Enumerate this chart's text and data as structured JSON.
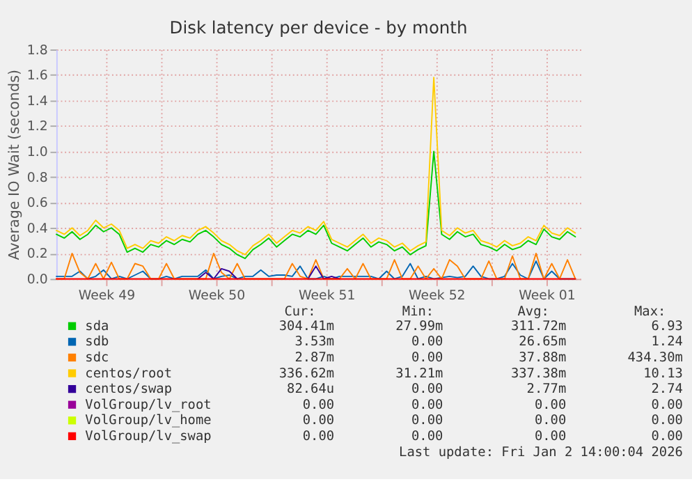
{
  "chart_data": {
    "type": "line",
    "title": "Disk latency per device - by month",
    "ylabel": "Average IO Wait (seconds)",
    "x": [
      "2025-12-01T08:00",
      "2025-12-01T20:00",
      "2025-12-02T08:00",
      "2025-12-02T20:00",
      "2025-12-03T08:00",
      "2025-12-03T20:00",
      "2025-12-04T08:00",
      "2025-12-04T20:00",
      "2025-12-05T08:00",
      "2025-12-05T20:00",
      "2025-12-06T08:00",
      "2025-12-06T20:00",
      "2025-12-07T08:00",
      "2025-12-07T20:00",
      "2025-12-08T08:00",
      "2025-12-08T20:00",
      "2025-12-09T08:00",
      "2025-12-09T20:00",
      "2025-12-10T08:00",
      "2025-12-10T20:00",
      "2025-12-11T08:00",
      "2025-12-11T20:00",
      "2025-12-12T08:00",
      "2025-12-12T20:00",
      "2025-12-13T08:00",
      "2025-12-13T20:00",
      "2025-12-14T08:00",
      "2025-12-14T20:00",
      "2025-12-15T08:00",
      "2025-12-15T20:00",
      "2025-12-16T08:00",
      "2025-12-16T20:00",
      "2025-12-17T08:00",
      "2025-12-17T20:00",
      "2025-12-18T08:00",
      "2025-12-18T20:00",
      "2025-12-19T08:00",
      "2025-12-19T20:00",
      "2025-12-20T08:00",
      "2025-12-20T20:00",
      "2025-12-21T08:00",
      "2025-12-21T20:00",
      "2025-12-22T08:00",
      "2025-12-22T20:00",
      "2025-12-23T08:00",
      "2025-12-23T20:00",
      "2025-12-24T08:00",
      "2025-12-24T20:00",
      "2025-12-25T08:00",
      "2025-12-25T20:00",
      "2025-12-26T08:00",
      "2025-12-26T20:00",
      "2025-12-27T08:00",
      "2025-12-27T20:00",
      "2025-12-28T08:00",
      "2025-12-28T20:00",
      "2025-12-29T08:00",
      "2025-12-29T20:00",
      "2025-12-30T08:00",
      "2025-12-30T20:00",
      "2025-12-31T08:00",
      "2025-12-31T20:00",
      "2026-01-01T08:00",
      "2026-01-01T20:00",
      "2026-01-02T08:00",
      "2026-01-02T20:00",
      "2026-01-03T08:00"
    ],
    "series": [
      {
        "name": "sda",
        "color": "#00cc00",
        "values": [
          0.35,
          0.32,
          0.37,
          0.31,
          0.35,
          0.42,
          0.37,
          0.4,
          0.35,
          0.21,
          0.24,
          0.21,
          0.27,
          0.25,
          0.3,
          0.27,
          0.31,
          0.29,
          0.35,
          0.38,
          0.33,
          0.27,
          0.24,
          0.19,
          0.16,
          0.23,
          0.27,
          0.32,
          0.25,
          0.3,
          0.35,
          0.33,
          0.38,
          0.35,
          0.42,
          0.28,
          0.25,
          0.22,
          0.27,
          0.32,
          0.25,
          0.29,
          0.27,
          0.22,
          0.25,
          0.19,
          0.23,
          0.26,
          1.0,
          0.35,
          0.31,
          0.37,
          0.33,
          0.35,
          0.27,
          0.25,
          0.22,
          0.27,
          0.23,
          0.25,
          0.3,
          0.27,
          0.39,
          0.33,
          0.31,
          0.37,
          0.33
        ]
      },
      {
        "name": "sdb",
        "color": "#0066b3",
        "values": [
          0.02,
          0.02,
          0.02,
          0.06,
          0.0,
          0.02,
          0.07,
          0.0,
          0.02,
          0.0,
          0.03,
          0.06,
          0.0,
          0.0,
          0.02,
          0.0,
          0.02,
          0.02,
          0.02,
          0.07,
          0.0,
          0.02,
          0.03,
          0.0,
          0.02,
          0.02,
          0.07,
          0.02,
          0.03,
          0.03,
          0.02,
          0.1,
          0.0,
          0.0,
          0.02,
          0.0,
          0.02,
          0.02,
          0.02,
          0.02,
          0.02,
          0.0,
          0.06,
          0.0,
          0.02,
          0.12,
          0.0,
          0.02,
          0.0,
          0.01,
          0.02,
          0.01,
          0.02,
          0.1,
          0.02,
          0.0,
          0.0,
          0.02,
          0.12,
          0.03,
          0.0,
          0.14,
          0.0,
          0.06,
          0.0,
          0.0,
          0.0
        ]
      },
      {
        "name": "sdc",
        "color": "#ff8000",
        "values": [
          0.0,
          0.0,
          0.2,
          0.05,
          0.0,
          0.12,
          0.0,
          0.13,
          0.0,
          0.0,
          0.12,
          0.1,
          0.0,
          0.0,
          0.12,
          0.0,
          0.0,
          0.0,
          0.0,
          0.0,
          0.2,
          0.05,
          0.0,
          0.12,
          0.0,
          0.0,
          0.0,
          0.0,
          0.0,
          0.0,
          0.12,
          0.02,
          0.0,
          0.15,
          0.0,
          0.0,
          0.0,
          0.08,
          0.0,
          0.12,
          0.0,
          0.0,
          0.0,
          0.15,
          0.0,
          0.0,
          0.1,
          0.0,
          0.08,
          0.0,
          0.15,
          0.1,
          0.0,
          0.0,
          0.0,
          0.14,
          0.0,
          0.0,
          0.18,
          0.0,
          0.0,
          0.2,
          0.0,
          0.12,
          0.0,
          0.15,
          0.0
        ]
      },
      {
        "name": "centos/root",
        "color": "#ffcc00",
        "values": [
          0.38,
          0.35,
          0.4,
          0.34,
          0.38,
          0.46,
          0.4,
          0.43,
          0.38,
          0.24,
          0.27,
          0.24,
          0.3,
          0.28,
          0.33,
          0.3,
          0.34,
          0.32,
          0.38,
          0.41,
          0.36,
          0.3,
          0.27,
          0.22,
          0.19,
          0.26,
          0.3,
          0.35,
          0.28,
          0.33,
          0.38,
          0.36,
          0.41,
          0.38,
          0.45,
          0.31,
          0.28,
          0.25,
          0.3,
          0.35,
          0.28,
          0.32,
          0.3,
          0.25,
          0.28,
          0.22,
          0.26,
          0.29,
          1.58,
          0.38,
          0.34,
          0.4,
          0.36,
          0.38,
          0.3,
          0.28,
          0.25,
          0.3,
          0.26,
          0.28,
          0.33,
          0.3,
          0.42,
          0.36,
          0.34,
          0.4,
          0.36
        ]
      },
      {
        "name": "centos/swap",
        "color": "#330099",
        "values": [
          null,
          null,
          null,
          null,
          null,
          null,
          null,
          null,
          null,
          null,
          null,
          null,
          null,
          null,
          null,
          null,
          null,
          null,
          0,
          0.05,
          0,
          0.08,
          0.06,
          0,
          null,
          null,
          null,
          null,
          null,
          null,
          null,
          null,
          0,
          0.1,
          0,
          0.02,
          0,
          null,
          null,
          null,
          null,
          null,
          null,
          null,
          null,
          null,
          null,
          null,
          null,
          null,
          null,
          null,
          null,
          null,
          null,
          null,
          null,
          null,
          null,
          null,
          null,
          null,
          null,
          null,
          null,
          null,
          null
        ]
      },
      {
        "name": "VolGroup/lv_root",
        "color": "#990099",
        "values": [
          null,
          null,
          null,
          null,
          null,
          null,
          null,
          null,
          null,
          null,
          null,
          null,
          null,
          null,
          null,
          null,
          null,
          null,
          null,
          null,
          null,
          null,
          null,
          null,
          null,
          null,
          null,
          null,
          null,
          null,
          null,
          null,
          null,
          null,
          null,
          null,
          null,
          null,
          null,
          null,
          null,
          null,
          null,
          null,
          null,
          null,
          null,
          null,
          null,
          null,
          null,
          null,
          null,
          null,
          null,
          null,
          null,
          null,
          null,
          null,
          null,
          null,
          null,
          null,
          null,
          null,
          null
        ]
      },
      {
        "name": "VolGroup/lv_home",
        "color": "#ccff00",
        "values": [
          null,
          null,
          null,
          null,
          null,
          null,
          null,
          null,
          null,
          null,
          null,
          null,
          null,
          null,
          null,
          null,
          null,
          null,
          null,
          null,
          null,
          null,
          null,
          null,
          null,
          null,
          null,
          null,
          null,
          null,
          null,
          null,
          null,
          null,
          null,
          null,
          null,
          null,
          null,
          null,
          null,
          null,
          null,
          null,
          null,
          null,
          null,
          null,
          null,
          null,
          null,
          null,
          null,
          null,
          null,
          null,
          null,
          null,
          null,
          null,
          null,
          null,
          null,
          null,
          null,
          null,
          null
        ]
      },
      {
        "name": "VolGroup/lv_swap",
        "color": "#ff0000",
        "values": [
          0,
          0,
          0,
          0,
          0,
          0,
          0,
          0,
          0,
          0,
          0,
          0,
          0,
          0,
          0,
          0,
          0,
          0,
          0,
          0,
          0,
          0,
          0,
          0,
          0,
          0,
          0,
          0,
          0,
          0,
          0,
          0,
          0,
          0,
          0,
          0,
          0,
          0,
          0,
          0,
          0,
          0,
          0,
          0,
          0,
          0,
          0,
          0,
          0,
          0,
          0,
          0,
          0,
          0,
          0,
          0,
          0,
          0,
          0,
          0,
          0,
          0,
          0,
          0,
          0,
          0,
          0
        ]
      }
    ],
    "xlim": [
      "2025-12-01T08:00",
      "2026-01-03T16:00"
    ],
    "xticks": [
      {
        "value": "2025-12-04T12:00",
        "label": "Week 49"
      },
      {
        "value": "2025-12-08T00:00",
        "label": null
      },
      {
        "value": "2025-12-11T12:00",
        "label": "Week 50"
      },
      {
        "value": "2025-12-15T00:00",
        "label": null
      },
      {
        "value": "2025-12-18T12:00",
        "label": "Week 51"
      },
      {
        "value": "2025-12-22T00:00",
        "label": null
      },
      {
        "value": "2025-12-25T12:00",
        "label": "Week 52"
      },
      {
        "value": "2025-12-29T00:00",
        "label": null
      },
      {
        "value": "2026-01-01T12:00",
        "label": "Week 01"
      }
    ],
    "ylim": [
      0,
      1.8
    ],
    "yticks": [
      {
        "value": 0,
        "label": "0.0"
      },
      0.2,
      0.4,
      0.6,
      0.8,
      {
        "value": 1,
        "label": "1.0"
      },
      1.2,
      1.4,
      1.6,
      1.8
    ],
    "grid": true,
    "legend": "bottom",
    "annotations": [
      "Cur:",
      "Min:",
      "Avg:",
      "Max:",
      "304.41m",
      "27.99m",
      "311.72m",
      "6.93",
      "3.53m",
      "0.00",
      "26.65m",
      "1.24",
      "2.87m",
      "0.00",
      "37.88m",
      "434.30m",
      "336.62m",
      "31.21m",
      "337.38m",
      "10.13",
      "82.64u",
      "0.00",
      "2.77m",
      "2.74",
      "0.00",
      "0.00",
      "0.00",
      "0.00",
      "0.00",
      "0.00",
      "0.00",
      "0.00",
      "0.00",
      "0.00",
      "0.00",
      "0.00",
      "Last update: Fri Jan  2 14:00:04 2026"
    ]
  }
}
